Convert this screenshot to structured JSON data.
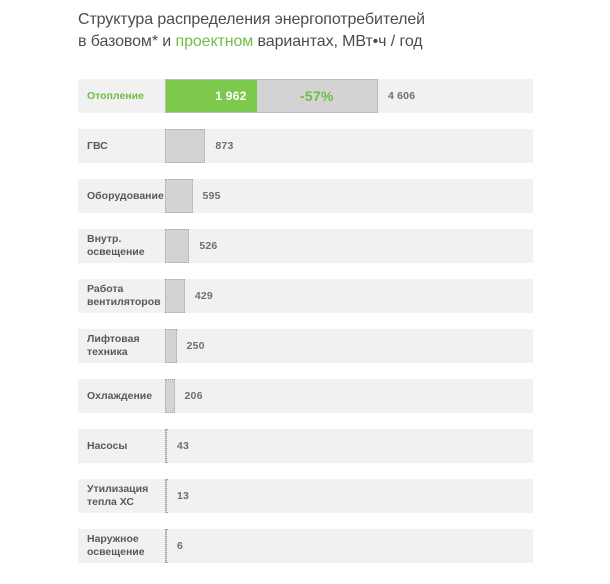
{
  "title": {
    "line1": "Структура  распределения энергопотребителей",
    "line2_prefix": "в базовом* и ",
    "line2_green": "проектном",
    "line2_suffix": " вариантах, МВт•ч / год"
  },
  "colors": {
    "green_bar": "#7cc94d",
    "green_text": "#6fbe44",
    "gray_bar": "#d3d3d3",
    "dotted_border": "#a6a6a6",
    "row_background": "#f1f1f2"
  },
  "chart_data": {
    "type": "bar",
    "title": "Структура распределения энергопотребителей в базовом* и проектном вариантах, МВт•ч / год",
    "unit": "МВт•ч / год",
    "orientation": "horizontal",
    "series_note": "base variant = dotted gray bar, project variant = solid green bar (only shown for Отопление)",
    "rows": [
      {
        "label": "Отопление",
        "base": 4606,
        "base_label": "4 606",
        "project": 1962,
        "project_label": "1 962",
        "delta": "-57%"
      },
      {
        "label": "ГВС",
        "base": 873,
        "base_label": "873"
      },
      {
        "label": "Оборудование",
        "base": 595,
        "base_label": "595"
      },
      {
        "label": "Внутр. освещение",
        "base": 526,
        "base_label": "526"
      },
      {
        "label": "Работа вентиляторов",
        "base": 429,
        "base_label": "429"
      },
      {
        "label": "Лифтовая техника",
        "base": 250,
        "base_label": "250"
      },
      {
        "label": "Охлаждение",
        "base": 206,
        "base_label": "206"
      },
      {
        "label": "Насосы",
        "base": 43,
        "base_label": "43"
      },
      {
        "label": "Утилизация тепла ХС",
        "base": 13,
        "base_label": "13"
      },
      {
        "label": "Наружное освещение",
        "base": 6,
        "base_label": "6"
      }
    ]
  }
}
